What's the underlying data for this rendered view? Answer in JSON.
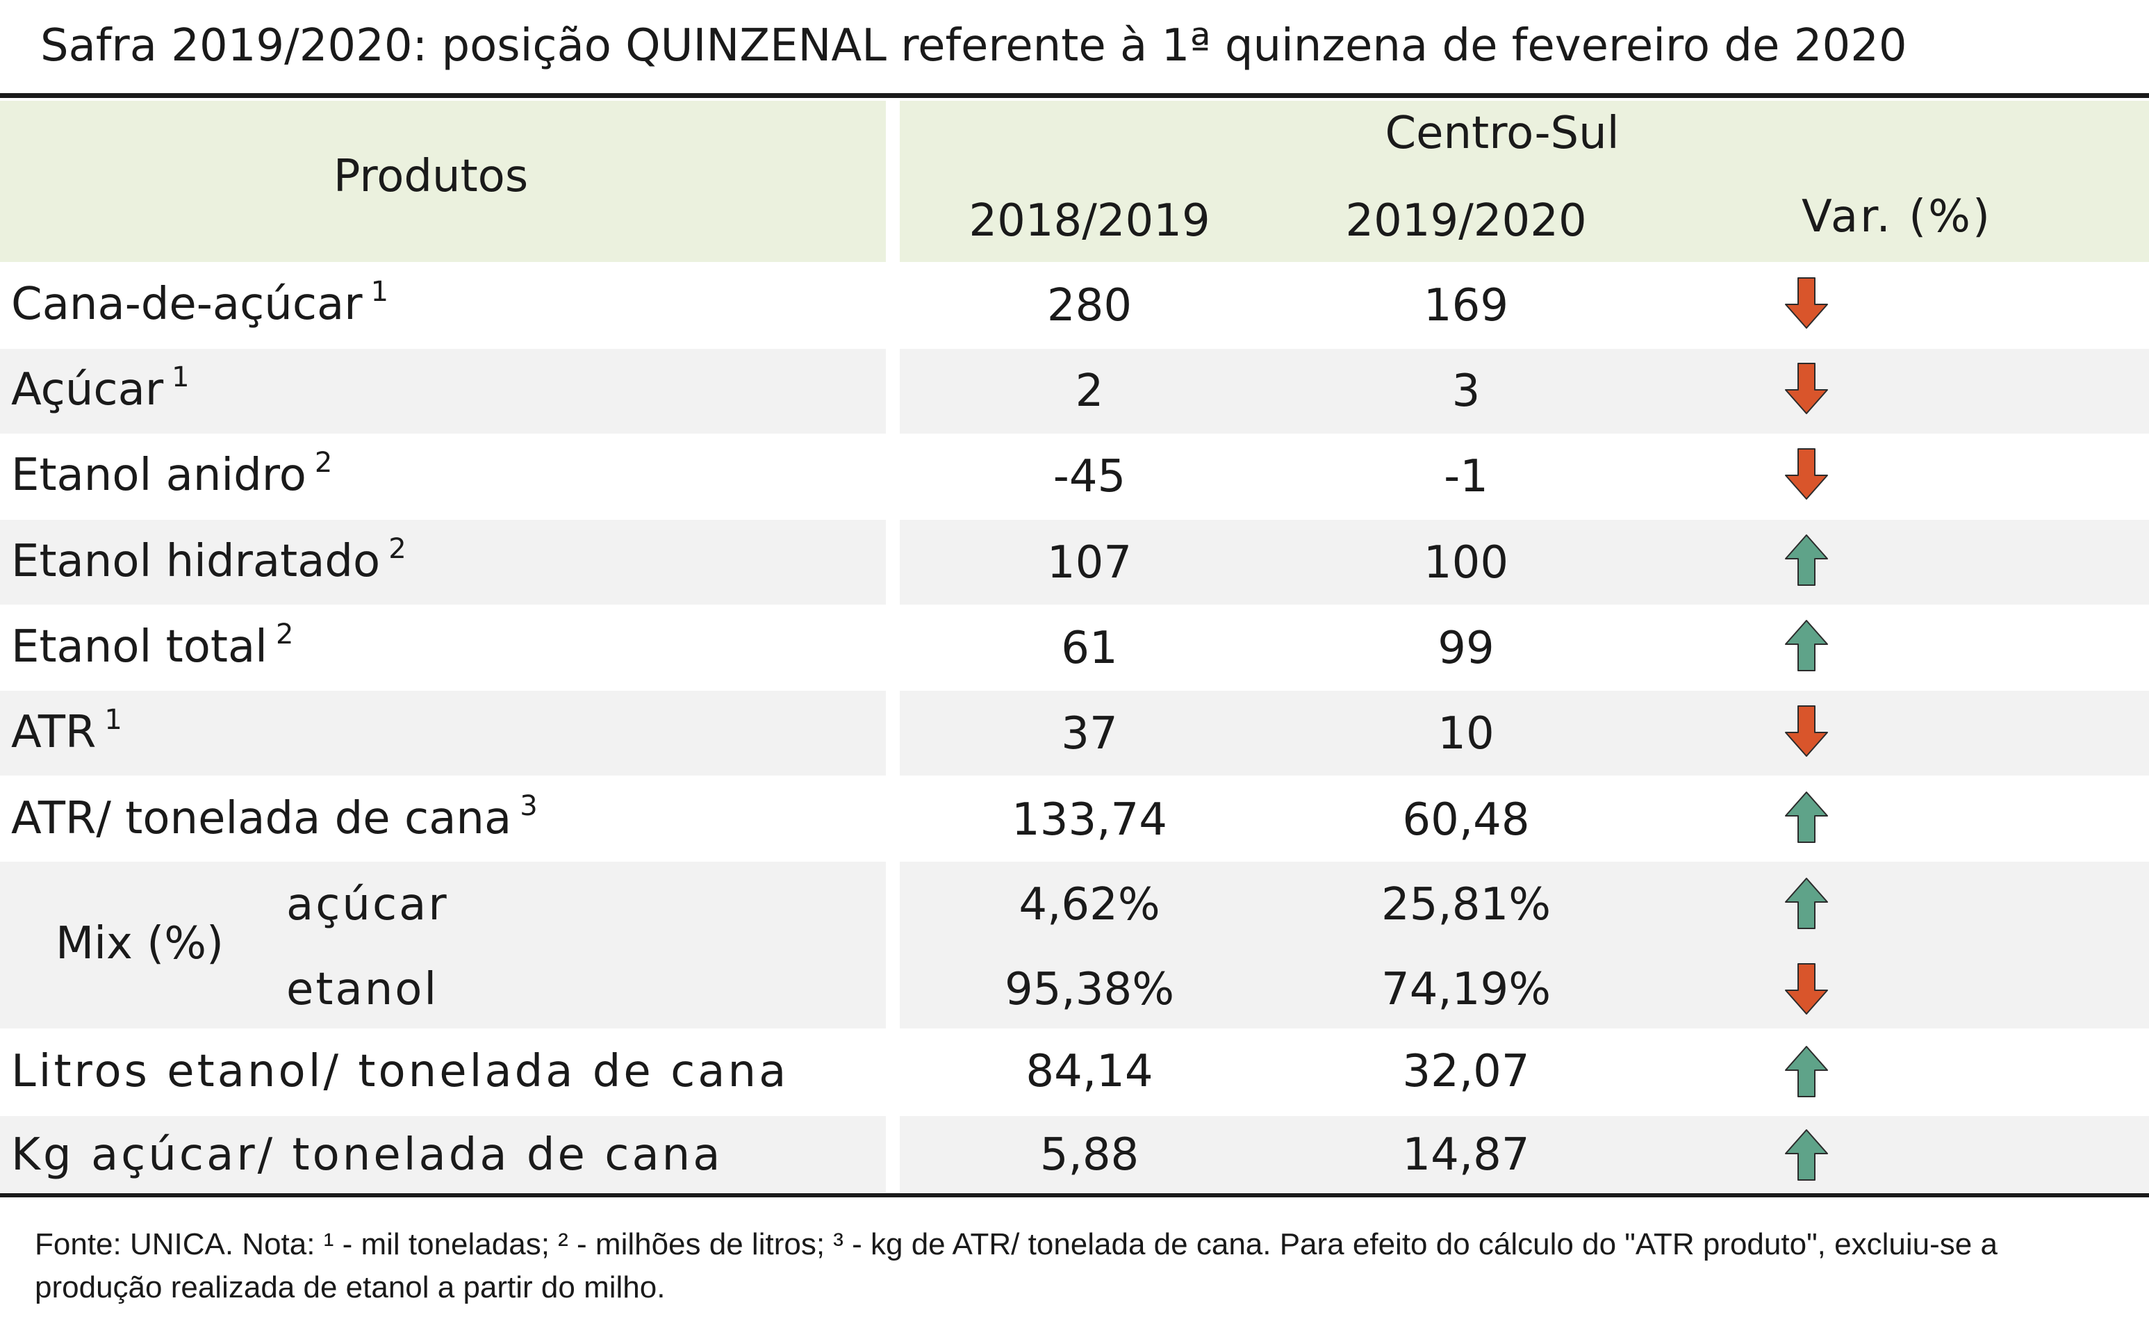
{
  "title": "Safra 2019/2020: posição QUINZENAL referente à 1ª quinzena de fevereiro de 2020",
  "header": {
    "produtos": "Produtos",
    "region": "Centro-Sul",
    "col1": "2018/2019",
    "col2": "2019/2020",
    "col3": "Var. (%)"
  },
  "rows": [
    {
      "label": "Cana-de-açúcar",
      "sup": "1",
      "v1": "280",
      "v2": "169",
      "trend": "down"
    },
    {
      "label": "Açúcar",
      "sup": "1",
      "v1": "2",
      "v2": "3",
      "trend": "down"
    },
    {
      "label": "Etanol anidro",
      "sup": "2",
      "v1": "-45",
      "v2": "-1",
      "trend": "down"
    },
    {
      "label": "Etanol hidratado",
      "sup": "2",
      "v1": "107",
      "v2": "100",
      "trend": "up"
    },
    {
      "label": "Etanol total",
      "sup": "2",
      "v1": "61",
      "v2": "99",
      "trend": "up"
    },
    {
      "label": "ATR",
      "sup": "1",
      "v1": "37",
      "v2": "10",
      "trend": "down"
    },
    {
      "label": "ATR/ tonelada de cana",
      "sup": "3",
      "v1": "133,74",
      "v2": "60,48",
      "trend": "up"
    }
  ],
  "mix": {
    "label": "Mix (%)",
    "acucar": {
      "label": "açúcar",
      "v1": "4,62%",
      "v2": "25,81%",
      "trend": "up"
    },
    "etanol": {
      "label": "etanol",
      "v1": "95,38%",
      "v2": "74,19%",
      "trend": "down"
    }
  },
  "rows_bottom": [
    {
      "label": "Litros etanol/ tonelada de cana",
      "v1": "84,14",
      "v2": "32,07",
      "trend": "up"
    },
    {
      "label": "Kg açúcar/ tonelada de cana",
      "v1": "5,88",
      "v2": "14,87",
      "trend": "up"
    }
  ],
  "footnote": "Fonte: UNICA. Nota: ¹ - mil toneladas; ² - milhões de litros; ³ - kg de ATR/ tonelada de cana. Para efeito do cálculo do \"ATR produto\", excluiu-se a produção realizada de etanol a partir do milho.",
  "colors": {
    "header_bg": "#ebf1de",
    "band_bg": "#f2f2f2",
    "arrow_down": "#d9552b",
    "arrow_up": "#5fa389"
  }
}
